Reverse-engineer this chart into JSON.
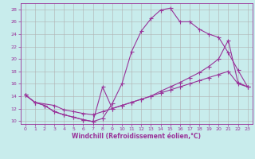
{
  "bg_color": "#c8ecec",
  "grid_color": "#b0b0b0",
  "line_color": "#993399",
  "xlabel": "Windchill (Refroidissement éolien,°C)",
  "xlim": [
    -0.5,
    23.5
  ],
  "ylim": [
    9.5,
    29.0
  ],
  "xticks": [
    0,
    1,
    2,
    3,
    4,
    5,
    6,
    7,
    8,
    9,
    10,
    11,
    12,
    13,
    14,
    15,
    16,
    17,
    18,
    19,
    20,
    21,
    22,
    23
  ],
  "yticks": [
    10,
    12,
    14,
    16,
    18,
    20,
    22,
    24,
    26,
    28
  ],
  "line1_x": [
    0,
    1,
    2,
    3,
    4,
    5,
    6,
    7,
    8,
    9,
    10,
    11,
    12,
    13,
    14,
    15,
    16,
    17,
    18,
    19,
    20,
    21,
    22,
    23
  ],
  "line1_y": [
    14.2,
    13.0,
    12.5,
    11.5,
    11.0,
    10.6,
    10.2,
    9.9,
    10.4,
    12.8,
    16.0,
    21.2,
    24.5,
    26.5,
    27.9,
    28.2,
    26.0,
    26.0,
    24.8,
    24.0,
    23.5,
    21.0,
    18.2,
    15.5
  ],
  "line2_x": [
    0,
    1,
    3,
    4,
    5,
    6,
    7,
    8,
    9,
    10,
    11,
    12,
    13,
    14,
    15,
    16,
    17,
    18,
    19,
    20,
    21,
    22,
    23
  ],
  "line2_y": [
    14.2,
    13.0,
    12.5,
    11.8,
    11.5,
    11.2,
    11.0,
    11.5,
    12.0,
    12.5,
    13.0,
    13.5,
    14.0,
    14.8,
    15.5,
    16.2,
    17.0,
    17.8,
    18.8,
    20.0,
    23.0,
    16.2,
    15.5
  ],
  "line3_x": [
    0,
    1,
    2,
    3,
    4,
    5,
    6,
    7,
    8,
    9,
    10,
    11,
    12,
    13,
    14,
    15,
    16,
    17,
    18,
    19,
    20,
    21,
    22,
    23
  ],
  "line3_y": [
    14.2,
    13.0,
    12.5,
    11.5,
    11.0,
    10.6,
    10.2,
    9.9,
    15.5,
    12.0,
    12.5,
    13.0,
    13.5,
    14.0,
    14.5,
    15.0,
    15.5,
    16.0,
    16.5,
    17.0,
    17.5,
    18.0,
    16.0,
    15.5
  ]
}
